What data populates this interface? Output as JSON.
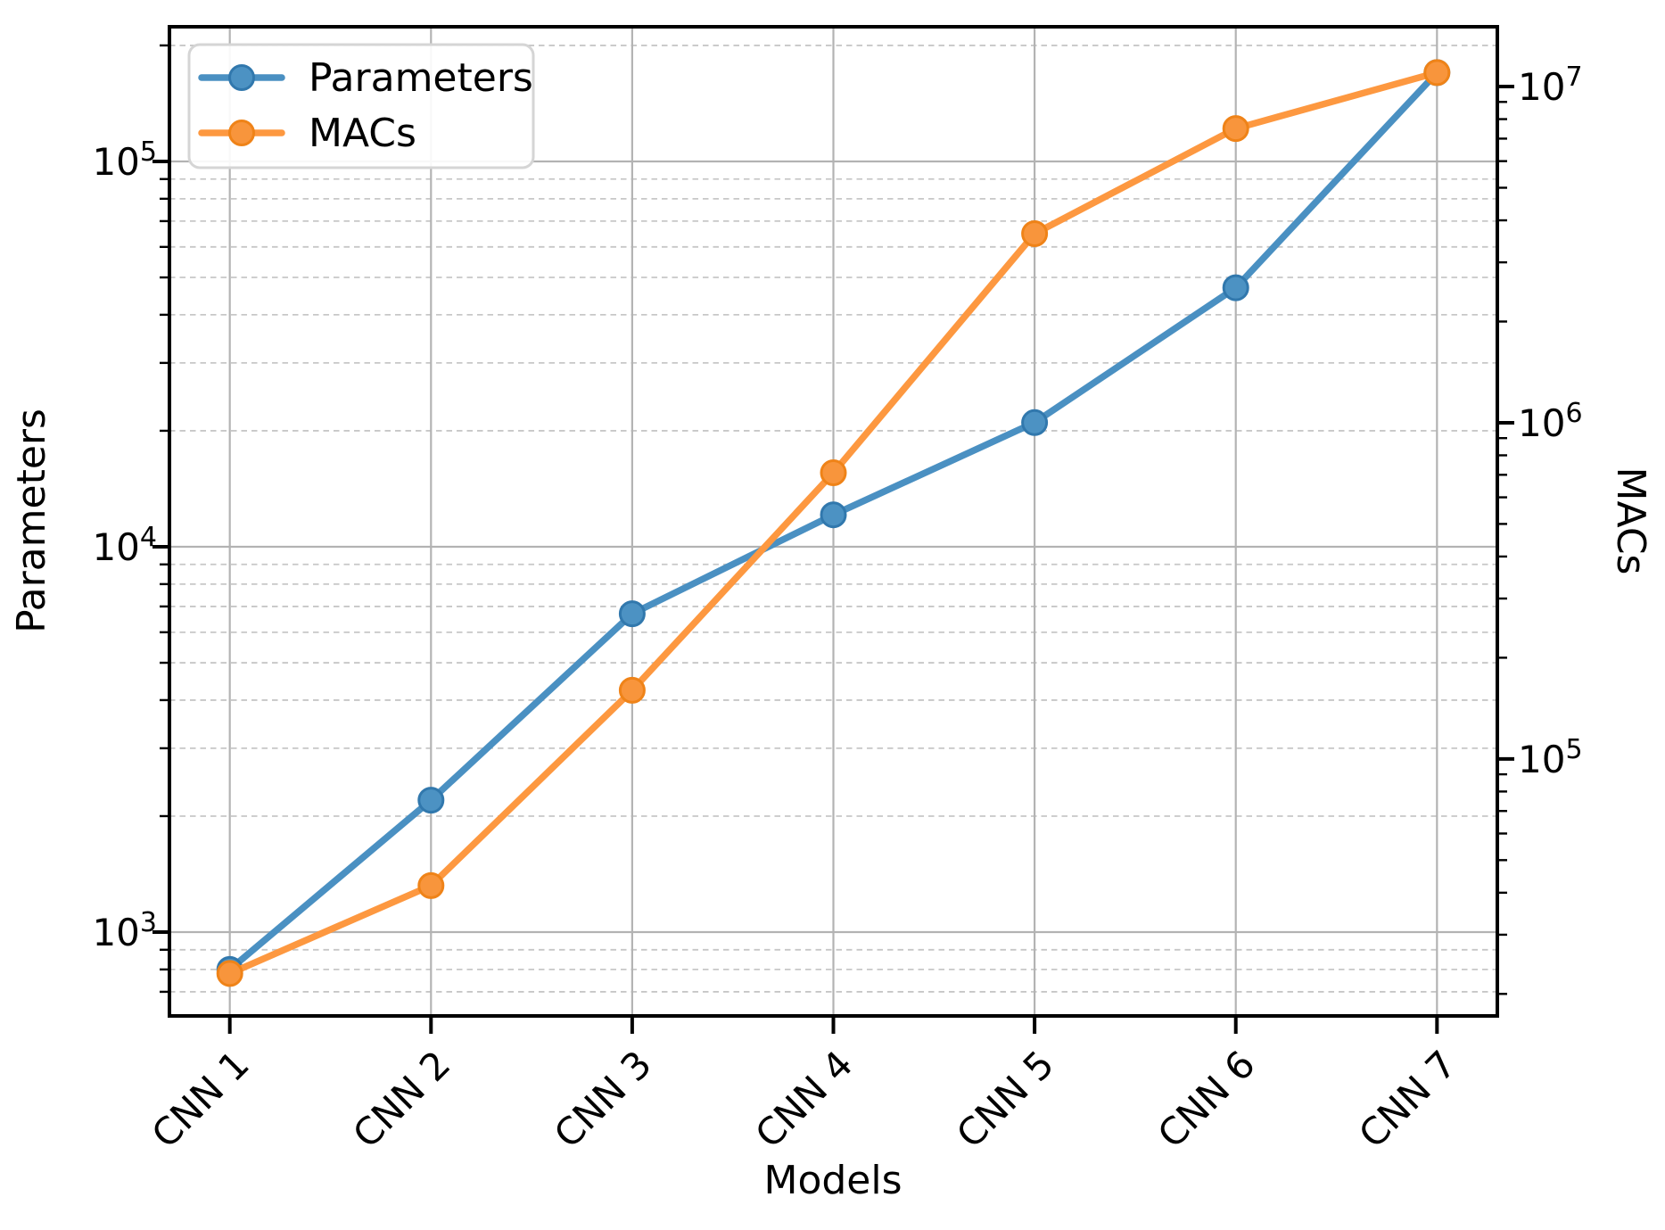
{
  "figure": {
    "background": "#ffffff"
  },
  "chart_data": {
    "type": "line",
    "title": "",
    "xlabel": "Models",
    "categories": [
      "CNN 1",
      "CNN 2",
      "CNN 3",
      "CNN 4",
      "CNN 5",
      "CNN 6",
      "CNN 7"
    ],
    "x_tick_rotation_deg": 45,
    "series": [
      {
        "name": "Parameters",
        "axis": "left",
        "marker": "circle",
        "line_color": "#4a90c2",
        "marker_fill": "#4c92c3",
        "marker_edge": "#3178ad",
        "values": [
          800,
          2200,
          6700,
          12100,
          21000,
          47000,
          170000
        ]
      },
      {
        "name": "MACs",
        "axis": "right",
        "marker": "circle",
        "line_color": "#fd9840",
        "marker_fill": "#f8953c",
        "marker_edge": "#ef8318",
        "values": [
          23000,
          42000,
          160000,
          710000,
          3650000,
          7500000,
          11000000
        ]
      }
    ],
    "left_axis": {
      "label": "Parameters",
      "scale": "log",
      "lim": [
        606,
        223600
      ],
      "major_ticks": [
        {
          "value": 1000,
          "base": "10",
          "exp": "3"
        },
        {
          "value": 10000,
          "base": "10",
          "exp": "4"
        },
        {
          "value": 100000,
          "base": "10",
          "exp": "5"
        }
      ]
    },
    "right_axis": {
      "label": "MACs",
      "scale": "log",
      "lim": [
        17200,
        15060000
      ],
      "major_ticks": [
        {
          "value": 100000,
          "base": "10",
          "exp": "5"
        },
        {
          "value": 1000000,
          "base": "10",
          "exp": "6"
        },
        {
          "value": 10000000,
          "base": "10",
          "exp": "7"
        }
      ]
    },
    "legend": {
      "location": "upper left",
      "entries": [
        "Parameters",
        "MACs"
      ]
    },
    "grid": {
      "major_style": "solid",
      "minor_style": "dashed",
      "major_color": "#b3b3b3",
      "minor_color": "#c7c7c7"
    },
    "axes_color": "#000000"
  }
}
